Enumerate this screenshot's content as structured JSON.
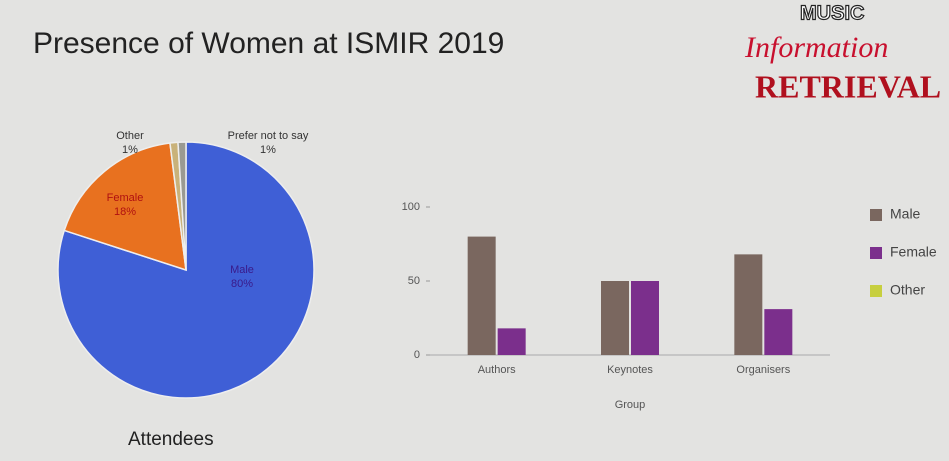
{
  "slide_title": "Presence of Women at ISMIR 2019",
  "caption": "Attendees",
  "logo": [
    "MUSIC",
    "Information",
    "RETRIEVAL"
  ],
  "chart_data": [
    {
      "type": "pie",
      "categories": [
        "Male",
        "Female",
        "Other",
        "Prefer not to say"
      ],
      "values": [
        80,
        18,
        1,
        1
      ],
      "value_labels": [
        "80%",
        "18%",
        "1%",
        "1%"
      ],
      "colors": [
        "#3f5fd6",
        "#e8711f",
        "#c9b27a",
        "#9a9a92"
      ]
    },
    {
      "type": "bar",
      "categories": [
        "Authors",
        "Keynotes",
        "Organisers"
      ],
      "xlabel": "Group",
      "ylim": [
        0,
        100
      ],
      "yticks": [
        0,
        50,
        100
      ],
      "series": [
        {
          "name": "Male",
          "color": "#7a675f",
          "values": [
            80,
            50,
            68
          ]
        },
        {
          "name": "Female",
          "color": "#7b2f8c",
          "values": [
            18,
            50,
            31
          ]
        },
        {
          "name": "Other",
          "color": "#c7cf3f",
          "values": [
            0,
            0,
            0
          ]
        }
      ]
    }
  ]
}
